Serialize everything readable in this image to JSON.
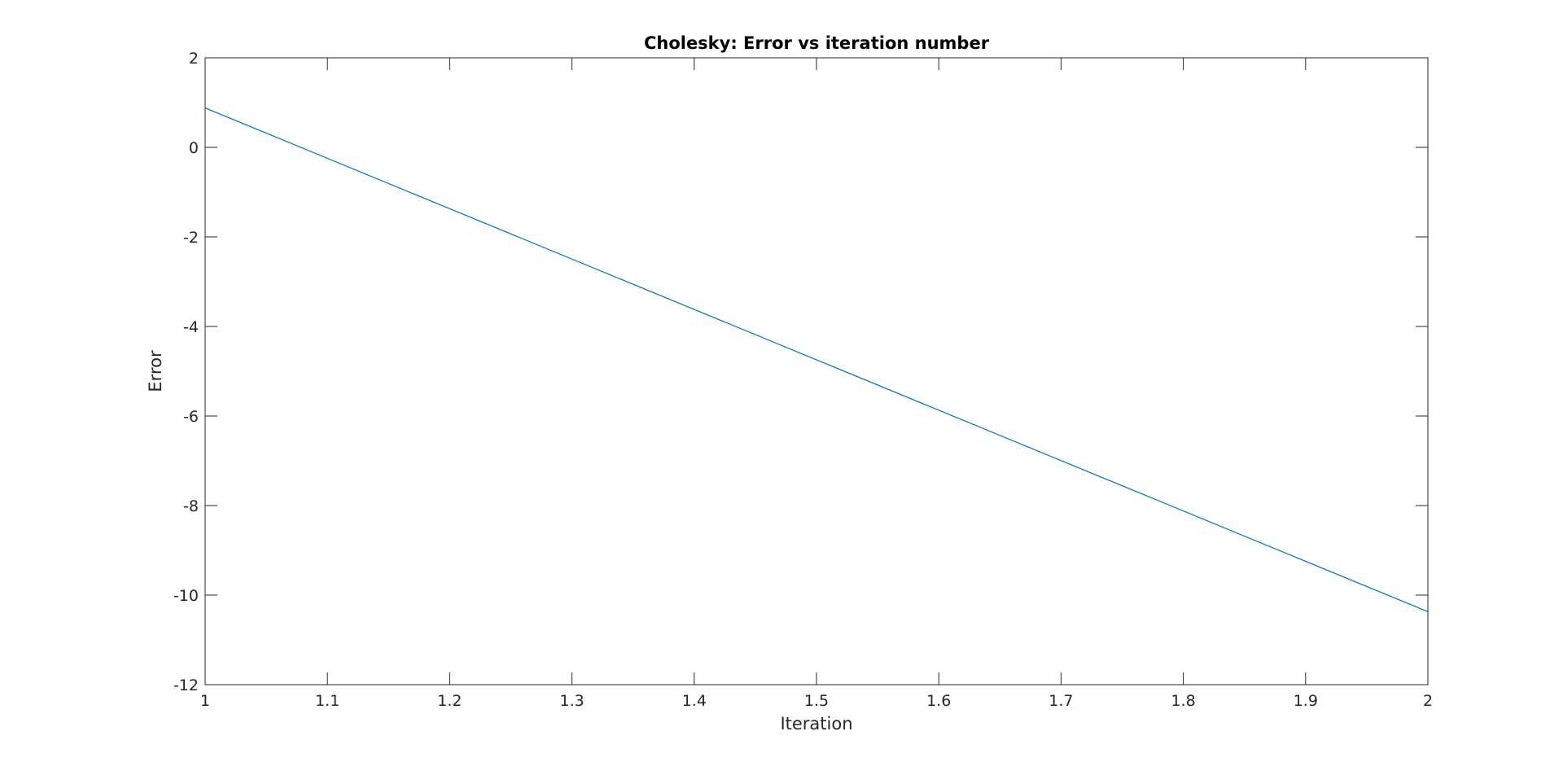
{
  "chart_data": {
    "type": "line",
    "title": "Cholesky: Error vs iteration number",
    "xlabel": "Iteration",
    "ylabel": "Error",
    "xlim": [
      1,
      2
    ],
    "ylim": [
      -12,
      2
    ],
    "xticks": [
      1,
      1.1,
      1.2,
      1.3,
      1.4,
      1.5,
      1.6,
      1.7,
      1.8,
      1.9,
      2
    ],
    "xtick_labels": [
      "1",
      "1.1",
      "1.2",
      "1.3",
      "1.4",
      "1.5",
      "1.6",
      "1.7",
      "1.8",
      "1.9",
      "2"
    ],
    "yticks": [
      -12,
      -10,
      -8,
      -6,
      -4,
      -2,
      0,
      2
    ],
    "ytick_labels": [
      "-12",
      "-10",
      "-8",
      "-6",
      "-4",
      "-2",
      "0",
      "2"
    ],
    "grid": false,
    "series": [
      {
        "name": "Error",
        "color": "#0072bd",
        "x": [
          1,
          2
        ],
        "y": [
          0.88,
          -10.37
        ]
      }
    ]
  }
}
